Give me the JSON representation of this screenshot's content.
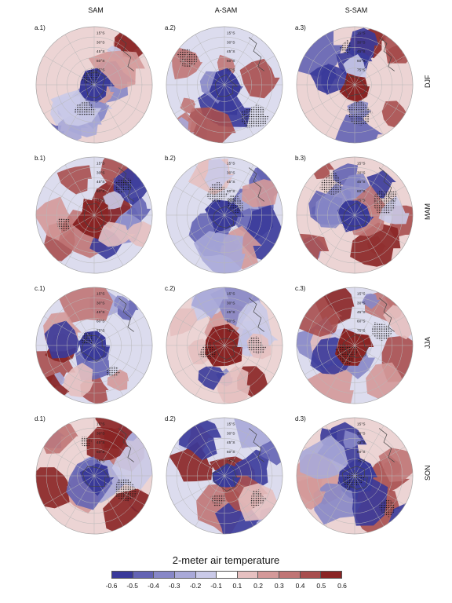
{
  "columns": [
    "SAM",
    "A-SAM",
    "S-SAM"
  ],
  "seasons": [
    "DJF",
    "MAM",
    "JJA",
    "SON"
  ],
  "panels": [
    [
      "a.1)",
      "a.2)",
      "a.3)"
    ],
    [
      "b.1)",
      "b.2)",
      "b.3)"
    ],
    [
      "c.1)",
      "c.2)",
      "c.3)"
    ],
    [
      "d.1)",
      "d.2)",
      "d.3)"
    ]
  ],
  "latitude_labels": [
    "15°S",
    "30°S",
    "45°S",
    "60°S",
    "75°S"
  ],
  "chart_data": {
    "type": "heatmap",
    "projection": "south polar stereographic",
    "colorbar": {
      "title": "2-meter air temperature",
      "ticks": [
        "-0.6",
        "-0.5",
        "-0.4",
        "-0.3",
        "-0.2",
        "-0.1",
        "0.1",
        "0.2",
        "0.3",
        "0.4",
        "0.5",
        "0.6"
      ],
      "colors": [
        "#3a3a9a",
        "#6464b4",
        "#8787c7",
        "#a9a9d8",
        "#cacae8",
        "#ffffff",
        "#e6c0c0",
        "#d49999",
        "#c07575",
        "#a84f4f",
        "#8a2424"
      ]
    },
    "hatching": "stippled black dots mark significant regions"
  }
}
